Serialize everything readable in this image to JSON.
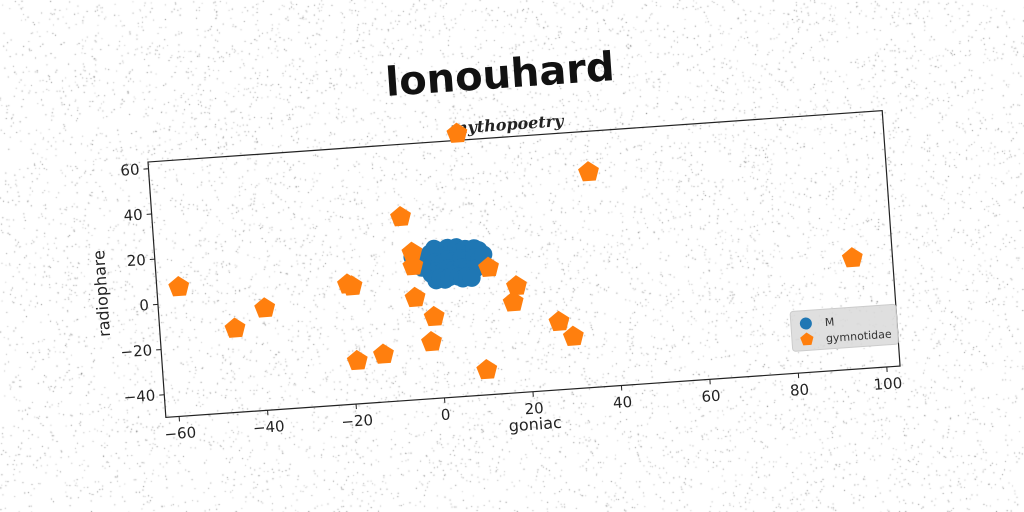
{
  "chart_data": {
    "type": "scatter",
    "title": "lonouhard",
    "subtitle": "mythopoetry",
    "xlabel": "goniac",
    "ylabel": "radiophare",
    "xlim": [
      -63,
      103
    ],
    "ylim": [
      -50,
      63
    ],
    "xticks": [
      -60,
      -40,
      -20,
      0,
      20,
      40,
      60,
      80,
      100
    ],
    "yticks": [
      -40,
      -20,
      0,
      20,
      40,
      60
    ],
    "grid": false,
    "legend_position": "lower-right",
    "series": [
      {
        "name": "M",
        "marker": "circle",
        "color": "#1f77b4",
        "points": [
          [
            -2,
            12
          ],
          [
            -1,
            14
          ],
          [
            0,
            16
          ],
          [
            1,
            15
          ],
          [
            2,
            13
          ],
          [
            3,
            16
          ],
          [
            4,
            15
          ],
          [
            5,
            16
          ],
          [
            6,
            14
          ],
          [
            7,
            15
          ],
          [
            8,
            13
          ],
          [
            9,
            15
          ],
          [
            10,
            14
          ],
          [
            -2,
            8
          ],
          [
            -1,
            9
          ],
          [
            0,
            10
          ],
          [
            1,
            9
          ],
          [
            2,
            10
          ],
          [
            3,
            11
          ],
          [
            4,
            10
          ],
          [
            5,
            9
          ],
          [
            6,
            11
          ],
          [
            7,
            10
          ],
          [
            8,
            9
          ],
          [
            9,
            11
          ],
          [
            10,
            10
          ],
          [
            -1,
            5
          ],
          [
            0,
            6
          ],
          [
            1,
            5
          ],
          [
            2,
            6
          ],
          [
            3,
            7
          ],
          [
            4,
            6
          ],
          [
            5,
            5
          ],
          [
            6,
            7
          ],
          [
            7,
            6
          ],
          [
            8,
            5
          ],
          [
            9,
            6
          ],
          [
            0,
            2
          ],
          [
            1,
            3
          ],
          [
            2,
            2
          ],
          [
            3,
            3
          ],
          [
            4,
            4
          ],
          [
            5,
            3
          ],
          [
            6,
            2
          ],
          [
            7,
            3
          ],
          [
            8,
            2
          ],
          [
            -4,
            11
          ],
          [
            -3,
            8
          ],
          [
            11,
            12
          ],
          [
            -5,
            13
          ]
        ]
      },
      {
        "name": "gymnotidae",
        "marker": "pentagon",
        "color": "#ff7f0e",
        "points": [
          [
            7,
            66
          ],
          [
            36,
            45
          ],
          [
            -7,
            31
          ],
          [
            -5,
            15
          ],
          [
            -5,
            9
          ],
          [
            -58,
            7
          ],
          [
            -20,
            3
          ],
          [
            -19,
            2
          ],
          [
            12,
            6
          ],
          [
            -39,
            -5
          ],
          [
            -46,
            -13
          ],
          [
            -5,
            -5
          ],
          [
            -1,
            -14
          ],
          [
            18,
            -3
          ],
          [
            17,
            -10
          ],
          [
            27,
            -20
          ],
          [
            30,
            -27
          ],
          [
            -2,
            -25
          ],
          [
            -13,
            -29
          ],
          [
            -19,
            -31
          ],
          [
            10,
            -39
          ],
          [
            94,
            -1
          ]
        ]
      }
    ]
  }
}
